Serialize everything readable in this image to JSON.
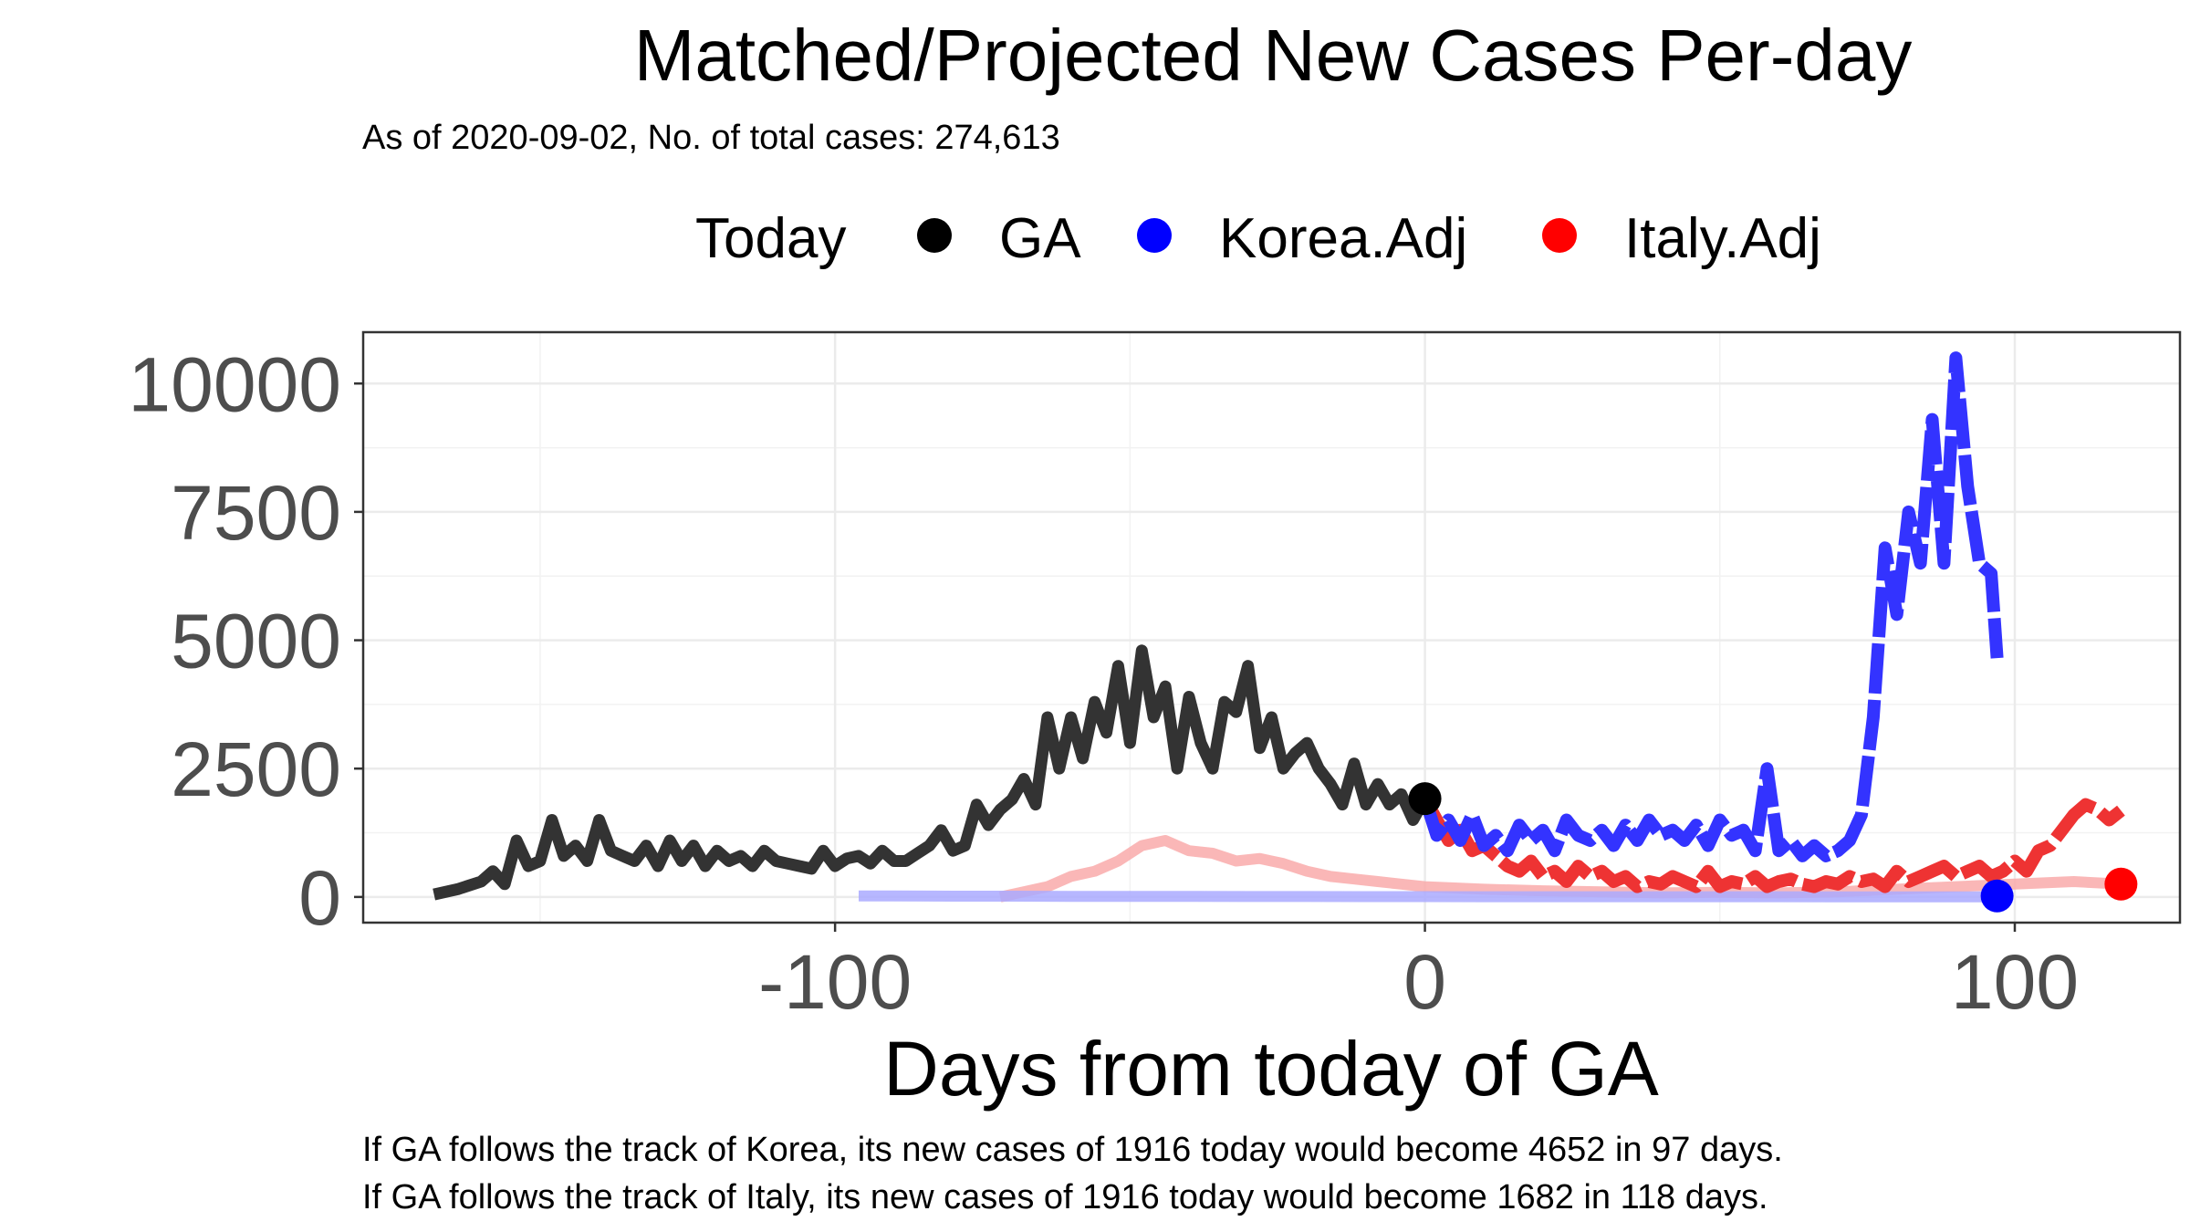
{
  "chart_data": {
    "type": "line",
    "title": "Matched/Projected New Cases Per-day",
    "subtitle": "As of 2020-09-02, No. of total cases: 274,613",
    "xlabel": "Days from today of GA",
    "ylabel": "",
    "xlim": [
      -180,
      128
    ],
    "ylim": [
      -500,
      11000
    ],
    "x_ticks": [
      -100,
      0,
      100
    ],
    "y_ticks": [
      0,
      2500,
      5000,
      7500,
      10000
    ],
    "grid": true,
    "legend": {
      "position": "top",
      "title": "Today",
      "entries": [
        {
          "label": "GA",
          "color": "#000000"
        },
        {
          "label": "Korea.Adj",
          "color": "#0000ff"
        },
        {
          "label": "Italy.Adj",
          "color": "#ff0000"
        }
      ]
    },
    "series": [
      {
        "name": "GA",
        "color": "#333333",
        "x": [
          -168,
          -164,
          -160,
          -158,
          -156,
          -154,
          -152,
          -150,
          -148,
          -146,
          -144,
          -142,
          -140,
          -138,
          -136,
          -134,
          -132,
          -130,
          -128,
          -126,
          -124,
          -122,
          -120,
          -118,
          -116,
          -114,
          -112,
          -110,
          -108,
          -106,
          -104,
          -102,
          -100,
          -98,
          -96,
          -94,
          -92,
          -90,
          -88,
          -86,
          -84,
          -82,
          -80,
          -78,
          -76,
          -74,
          -72,
          -70,
          -68,
          -66,
          -64,
          -62,
          -60,
          -58,
          -56,
          -54,
          -52,
          -50,
          -48,
          -46,
          -44,
          -42,
          -40,
          -38,
          -36,
          -34,
          -32,
          -30,
          -28,
          -26,
          -24,
          -22,
          -20,
          -18,
          -16,
          -14,
          -12,
          -10,
          -8,
          -6,
          -4,
          -2,
          0
        ],
        "values": [
          50,
          150,
          300,
          500,
          250,
          1100,
          600,
          700,
          1500,
          800,
          1000,
          700,
          1500,
          900,
          800,
          700,
          1000,
          600,
          1100,
          700,
          1000,
          600,
          900,
          700,
          800,
          600,
          900,
          700,
          650,
          600,
          550,
          900,
          600,
          750,
          800,
          650,
          900,
          700,
          700,
          850,
          1000,
          1300,
          900,
          1000,
          1800,
          1400,
          1700,
          1900,
          2300,
          1800,
          3500,
          2500,
          3500,
          2700,
          3800,
          3200,
          4500,
          3000,
          4800,
          3500,
          4100,
          2500,
          3900,
          3000,
          2500,
          3800,
          3600,
          4500,
          2900,
          3500,
          2500,
          2800,
          3000,
          2500,
          2200,
          1800,
          2600,
          1800,
          2200,
          1800,
          2000,
          1500,
          1916
        ]
      },
      {
        "name": "Korea.Adj",
        "color": "#3333ff",
        "x": [
          0,
          2,
          4,
          6,
          8,
          10,
          12,
          14,
          16,
          18,
          20,
          22,
          24,
          26,
          28,
          30,
          32,
          34,
          36,
          38,
          40,
          42,
          44,
          46,
          48,
          50,
          52,
          54,
          56,
          58,
          60,
          62,
          64,
          66,
          68,
          70,
          72,
          74,
          76,
          78,
          80,
          82,
          84,
          86,
          88,
          90,
          92,
          94,
          96,
          97
        ],
        "values": [
          1916,
          1200,
          1500,
          1100,
          1600,
          1000,
          1200,
          900,
          1400,
          1100,
          1300,
          900,
          1500,
          1200,
          1100,
          1300,
          1000,
          1400,
          1100,
          1500,
          1200,
          1300,
          1100,
          1400,
          1000,
          1500,
          1200,
          1300,
          900,
          2500,
          900,
          1100,
          800,
          1000,
          800,
          900,
          1100,
          1600,
          3500,
          6800,
          5500,
          7500,
          6500,
          9300,
          6500,
          10500,
          8000,
          6500,
          6300,
          4652
        ]
      },
      {
        "name": "Italy.Adj",
        "color": "#ee3333",
        "x": [
          0,
          2,
          4,
          6,
          8,
          10,
          12,
          14,
          16,
          18,
          20,
          22,
          24,
          26,
          28,
          30,
          32,
          34,
          36,
          38,
          40,
          42,
          44,
          46,
          48,
          50,
          52,
          54,
          56,
          58,
          60,
          62,
          64,
          66,
          68,
          70,
          72,
          74,
          76,
          78,
          80,
          82,
          84,
          86,
          88,
          90,
          92,
          94,
          96,
          98,
          100,
          102,
          104,
          106,
          108,
          110,
          112,
          114,
          116,
          118
        ],
        "values": [
          1916,
          1500,
          1100,
          1300,
          900,
          1000,
          800,
          600,
          500,
          700,
          400,
          500,
          300,
          600,
          400,
          500,
          300,
          400,
          200,
          300,
          250,
          400,
          300,
          200,
          500,
          200,
          300,
          250,
          400,
          200,
          300,
          350,
          250,
          200,
          300,
          250,
          400,
          300,
          350,
          200,
          500,
          300,
          400,
          500,
          600,
          400,
          500,
          600,
          400,
          500,
          700,
          500,
          900,
          1000,
          1300,
          1600,
          1800,
          1700,
          1500,
          1682
        ]
      },
      {
        "name": "",
        "color": "#f9aaaa",
        "x": [
          -72,
          -68,
          -64,
          -60,
          -56,
          -52,
          -48,
          -44,
          -40,
          -36,
          -32,
          -28,
          -24,
          -20,
          -16,
          -12,
          -8,
          -4,
          0,
          10,
          20,
          30,
          40,
          50,
          60,
          70,
          80,
          90,
          100,
          110,
          118
        ],
        "values": [
          0,
          100,
          200,
          400,
          500,
          700,
          1000,
          1100,
          900,
          850,
          700,
          750,
          650,
          500,
          400,
          350,
          300,
          250,
          200,
          150,
          120,
          100,
          80,
          90,
          80,
          100,
          150,
          200,
          250,
          300,
          250
        ]
      },
      {
        "name": "",
        "color": "#aaaaff",
        "x": [
          -96,
          -90,
          -80,
          -70,
          -60,
          -50,
          -40,
          -30,
          -20,
          -10,
          0,
          10,
          20,
          30,
          40,
          50,
          60,
          70,
          80,
          90,
          97
        ],
        "values": [
          20,
          20,
          15,
          15,
          10,
          10,
          10,
          8,
          8,
          6,
          6,
          5,
          5,
          4,
          4,
          4,
          4,
          3,
          3,
          3,
          2
        ]
      }
    ],
    "today_points": [
      {
        "series": "GA",
        "x": 0,
        "y": 1916,
        "color": "#000000"
      },
      {
        "series": "Korea.Adj",
        "x": 97,
        "y": 20,
        "color": "#0000ff"
      },
      {
        "series": "Italy.Adj",
        "x": 118,
        "y": 250,
        "color": "#ff0000"
      }
    ],
    "annotations": [
      "If GA follows the track of Korea, its new cases of 1916 today would become 4652 in 97 days.",
      "If GA follows the track of Italy, its new cases of 1916 today would become 1682 in 118 days."
    ]
  }
}
